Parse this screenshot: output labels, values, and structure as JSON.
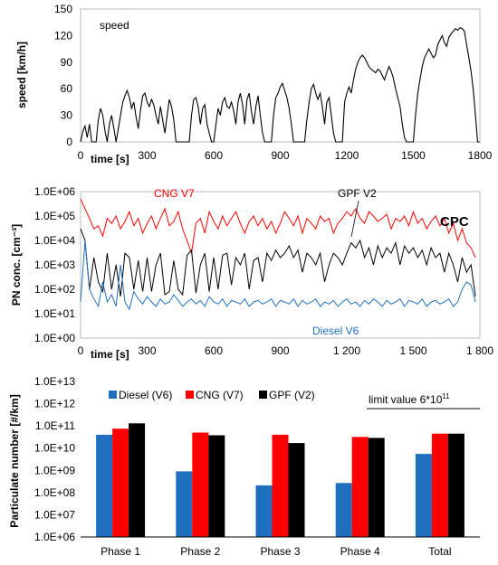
{
  "colors": {
    "diesel": "#1f6fbf",
    "cng": "#ff0000",
    "gpf": "#000000",
    "speed": "#000000"
  },
  "chart_data": [
    {
      "type": "line",
      "annotation": "speed",
      "xlabel": "time [s]",
      "ylabel": "speed [km/h]",
      "xlim": [
        0,
        1800
      ],
      "ylim": [
        0,
        150
      ],
      "x_ticks": [
        0,
        300,
        600,
        900,
        1200,
        1500,
        1800
      ],
      "x_tick_labels": [
        "0",
        "300",
        "600",
        "900",
        "1200",
        "1500",
        "1800"
      ],
      "y_ticks": [
        0,
        30,
        60,
        90,
        120,
        150
      ],
      "y_tick_labels": [
        "0",
        "30",
        "60",
        "90",
        "120",
        "150"
      ],
      "series": [
        {
          "color": "#000000",
          "x": [
            0,
            10,
            20,
            30,
            40,
            50,
            60,
            70,
            80,
            90,
            100,
            110,
            120,
            130,
            140,
            150,
            160,
            170,
            180,
            190,
            200,
            210,
            220,
            230,
            240,
            250,
            260,
            270,
            280,
            290,
            300,
            310,
            320,
            330,
            340,
            350,
            360,
            370,
            380,
            390,
            400,
            410,
            420,
            430,
            440,
            450,
            460,
            470,
            480,
            490,
            500,
            510,
            520,
            530,
            540,
            550,
            560,
            570,
            580,
            590,
            600,
            610,
            620,
            630,
            640,
            650,
            660,
            670,
            680,
            690,
            700,
            710,
            720,
            730,
            740,
            750,
            760,
            770,
            780,
            790,
            800,
            810,
            820,
            830,
            840,
            850,
            860,
            870,
            880,
            890,
            900,
            910,
            920,
            930,
            940,
            950,
            960,
            970,
            980,
            990,
            1000,
            1010,
            1020,
            1030,
            1040,
            1050,
            1060,
            1070,
            1080,
            1090,
            1100,
            1110,
            1120,
            1130,
            1140,
            1150,
            1160,
            1170,
            1180,
            1190,
            1200,
            1210,
            1220,
            1230,
            1240,
            1250,
            1260,
            1270,
            1280,
            1290,
            1300,
            1310,
            1320,
            1330,
            1340,
            1350,
            1360,
            1370,
            1380,
            1390,
            1400,
            1410,
            1420,
            1430,
            1440,
            1450,
            1460,
            1470,
            1480,
            1490,
            1500,
            1510,
            1520,
            1530,
            1540,
            1550,
            1560,
            1570,
            1580,
            1590,
            1600,
            1610,
            1620,
            1630,
            1640,
            1650,
            1660,
            1670,
            1680,
            1690,
            1700,
            1710,
            1720,
            1730,
            1740,
            1750,
            1760,
            1770,
            1780,
            1790,
            1800
          ],
          "y": [
            0,
            12,
            18,
            5,
            20,
            0,
            0,
            0,
            25,
            38,
            30,
            12,
            0,
            20,
            30,
            15,
            0,
            15,
            30,
            45,
            52,
            58,
            50,
            38,
            45,
            28,
            15,
            35,
            52,
            55,
            45,
            40,
            48,
            42,
            30,
            20,
            40,
            25,
            10,
            30,
            48,
            40,
            25,
            0,
            0,
            0,
            0,
            0,
            0,
            0,
            30,
            48,
            50,
            40,
            20,
            38,
            42,
            20,
            10,
            0,
            0,
            20,
            38,
            30,
            45,
            50,
            40,
            38,
            45,
            35,
            20,
            45,
            55,
            42,
            20,
            48,
            55,
            35,
            20,
            40,
            52,
            30,
            10,
            0,
            0,
            0,
            0,
            30,
            50,
            55,
            62,
            66,
            58,
            50,
            38,
            20,
            0,
            0,
            0,
            0,
            0,
            0,
            25,
            45,
            60,
            65,
            55,
            48,
            55,
            40,
            20,
            45,
            50,
            30,
            10,
            0,
            0,
            0,
            0,
            45,
            55,
            62,
            55,
            70,
            82,
            90,
            95,
            98,
            95,
            90,
            85,
            82,
            80,
            78,
            82,
            80,
            75,
            70,
            78,
            85,
            80,
            72,
            60,
            50,
            40,
            20,
            5,
            0,
            0,
            0,
            0,
            30,
            55,
            70,
            85,
            95,
            100,
            105,
            100,
            95,
            98,
            110,
            115,
            120,
            112,
            108,
            118,
            122,
            125,
            128,
            126,
            129,
            128,
            125,
            110,
            95,
            80,
            60,
            30,
            0,
            0
          ]
        }
      ]
    },
    {
      "type": "line",
      "title": "CPC",
      "xlabel": "time [s]",
      "ylabel": "PN conc. [cm⁻³]",
      "yscale": "log",
      "xlim": [
        0,
        1800
      ],
      "ylim": [
        1,
        1000000
      ],
      "x_ticks": [
        0,
        300,
        600,
        900,
        1200,
        1500,
        1800
      ],
      "x_tick_labels": [
        "0",
        "300",
        "600",
        "900",
        "1 200",
        "1 500",
        "1 800"
      ],
      "y_ticks": [
        1,
        10,
        100,
        1000,
        10000,
        100000,
        1000000
      ],
      "y_tick_labels": [
        "1.0E+00",
        "1.0E+01",
        "1.0E+02",
        "1.0E+03",
        "1.0E+04",
        "1.0E+05",
        "1.0E+06"
      ],
      "series": [
        {
          "name": "CNG V7",
          "color": "#ff0000",
          "x": [
            0,
            20,
            40,
            60,
            80,
            100,
            120,
            140,
            160,
            180,
            200,
            220,
            240,
            260,
            280,
            300,
            320,
            340,
            360,
            380,
            400,
            420,
            440,
            460,
            480,
            500,
            520,
            540,
            560,
            580,
            600,
            620,
            640,
            660,
            680,
            700,
            720,
            740,
            760,
            780,
            800,
            820,
            840,
            860,
            880,
            900,
            920,
            940,
            960,
            980,
            1000,
            1020,
            1040,
            1060,
            1080,
            1100,
            1120,
            1140,
            1160,
            1180,
            1200,
            1220,
            1240,
            1260,
            1280,
            1300,
            1320,
            1340,
            1360,
            1380,
            1400,
            1420,
            1440,
            1460,
            1480,
            1500,
            1520,
            1540,
            1560,
            1580,
            1600,
            1620,
            1640,
            1660,
            1680,
            1700,
            1720,
            1740,
            1760,
            1780
          ],
          "y": [
            500000,
            200000,
            80000,
            30000,
            40000,
            15000,
            80000,
            50000,
            100000,
            30000,
            60000,
            150000,
            40000,
            80000,
            20000,
            50000,
            100000,
            30000,
            80000,
            200000,
            40000,
            60000,
            150000,
            30000,
            10000,
            3000,
            50000,
            80000,
            20000,
            150000,
            60000,
            30000,
            100000,
            40000,
            80000,
            150000,
            50000,
            20000,
            60000,
            100000,
            40000,
            80000,
            30000,
            60000,
            20000,
            50000,
            150000,
            80000,
            40000,
            100000,
            20000,
            80000,
            50000,
            30000,
            100000,
            60000,
            80000,
            20000,
            50000,
            80000,
            150000,
            100000,
            200000,
            80000,
            50000,
            150000,
            100000,
            60000,
            80000,
            120000,
            30000,
            80000,
            60000,
            100000,
            40000,
            150000,
            50000,
            80000,
            30000,
            60000,
            100000,
            40000,
            80000,
            20000,
            50000,
            10000,
            30000,
            8000,
            5000,
            2000
          ]
        },
        {
          "name": "GPF V2",
          "color": "#000000",
          "x": [
            0,
            20,
            40,
            60,
            80,
            100,
            120,
            140,
            160,
            180,
            200,
            220,
            240,
            260,
            280,
            300,
            320,
            340,
            360,
            380,
            400,
            420,
            440,
            460,
            480,
            500,
            520,
            540,
            560,
            580,
            600,
            620,
            640,
            660,
            680,
            700,
            720,
            740,
            760,
            780,
            800,
            820,
            840,
            860,
            880,
            900,
            920,
            940,
            960,
            980,
            1000,
            1020,
            1040,
            1060,
            1080,
            1100,
            1120,
            1140,
            1160,
            1180,
            1200,
            1220,
            1240,
            1260,
            1280,
            1300,
            1320,
            1340,
            1360,
            1380,
            1400,
            1420,
            1440,
            1460,
            1480,
            1500,
            1520,
            1540,
            1560,
            1580,
            1600,
            1620,
            1640,
            1660,
            1680,
            1700,
            1720,
            1740,
            1760,
            1780
          ],
          "y": [
            30000,
            10000,
            100,
            2000,
            200,
            80,
            3000,
            100,
            1000,
            50,
            3000,
            2000,
            100,
            1500,
            80,
            2000,
            80,
            1000,
            3000,
            60,
            80,
            1500,
            100,
            60,
            2500,
            4000,
            70,
            1000,
            3000,
            80,
            2000,
            100,
            2500,
            3000,
            150,
            2000,
            1000,
            3000,
            100,
            1500,
            2000,
            200,
            3000,
            1500,
            4000,
            2000,
            3000,
            6000,
            2000,
            4000,
            500,
            3000,
            2000,
            1000,
            3000,
            200,
            1000,
            3000,
            2000,
            1000,
            3000,
            8000,
            5000,
            10000,
            2000,
            5000,
            1000,
            6000,
            2000,
            5000,
            3000,
            8000,
            1000,
            6000,
            3000,
            5000,
            2000,
            4000,
            1000,
            5000,
            2000,
            3000,
            500,
            3000,
            1000,
            200,
            2000,
            500,
            1000,
            50
          ]
        },
        {
          "name": "Diesel V6",
          "color": "#1f6fbf",
          "x": [
            0,
            20,
            40,
            60,
            80,
            100,
            120,
            140,
            160,
            180,
            200,
            220,
            240,
            260,
            280,
            300,
            320,
            340,
            360,
            380,
            400,
            420,
            440,
            460,
            480,
            500,
            520,
            540,
            560,
            580,
            600,
            620,
            640,
            660,
            680,
            700,
            720,
            740,
            760,
            780,
            800,
            820,
            840,
            860,
            880,
            900,
            920,
            940,
            960,
            980,
            1000,
            1020,
            1040,
            1060,
            1080,
            1100,
            1120,
            1140,
            1160,
            1180,
            1200,
            1220,
            1240,
            1260,
            1280,
            1300,
            1320,
            1340,
            1360,
            1380,
            1400,
            1420,
            1440,
            1460,
            1480,
            1500,
            1520,
            1540,
            1560,
            1580,
            1600,
            1620,
            1640,
            1660,
            1680,
            1700,
            1720,
            1740,
            1760,
            1780
          ],
          "y": [
            30,
            10000,
            100,
            40,
            20,
            200,
            30,
            60,
            20,
            1000,
            30,
            15,
            80,
            40,
            25,
            50,
            30,
            20,
            40,
            25,
            30,
            60,
            35,
            20,
            30,
            40,
            25,
            35,
            20,
            50,
            30,
            25,
            40,
            20,
            35,
            30,
            25,
            40,
            20,
            30,
            35,
            25,
            30,
            40,
            20,
            35,
            30,
            25,
            40,
            20,
            35,
            25,
            30,
            40,
            20,
            30,
            25,
            35,
            20,
            30,
            40,
            25,
            30,
            20,
            35,
            25,
            40,
            30,
            20,
            35,
            25,
            30,
            40,
            20,
            35,
            30,
            25,
            40,
            20,
            30,
            35,
            25,
            30,
            40,
            20,
            30,
            100,
            200,
            150,
            30
          ]
        }
      ]
    },
    {
      "type": "bar",
      "ylabel": "Particulate number [#/km]",
      "yscale": "log",
      "ylim": [
        1000000,
        10000000000000
      ],
      "y_ticks": [
        1000000,
        10000000,
        100000000,
        1000000000,
        10000000000,
        100000000000,
        1000000000000,
        10000000000000
      ],
      "y_tick_labels": [
        "1.0E+06",
        "1.0E+07",
        "1.0E+08",
        "1.0E+09",
        "1.0E+10",
        "1.0E+11",
        "1.0E+12",
        "1.0E+13"
      ],
      "categories": [
        "Phase 1",
        "Phase 2",
        "Phase 3",
        "Phase 4",
        "Total"
      ],
      "series": [
        {
          "name": "Diesel (V6)",
          "color": "#1f6fbf",
          "values": [
            40000000000,
            900000000,
            210000000,
            270000000,
            5500000000
          ]
        },
        {
          "name": "CNG (V7)",
          "color": "#ff0000",
          "values": [
            75000000000,
            50000000000,
            40000000000,
            32000000000,
            45000000000
          ]
        },
        {
          "name": "GPF (V2)",
          "color": "#000000",
          "values": [
            130000000000,
            38000000000,
            17000000000,
            29000000000,
            45000000000
          ]
        }
      ],
      "limit_label": "limit value  6*10",
      "limit_exponent": "11",
      "limit_value": 600000000000
    }
  ]
}
